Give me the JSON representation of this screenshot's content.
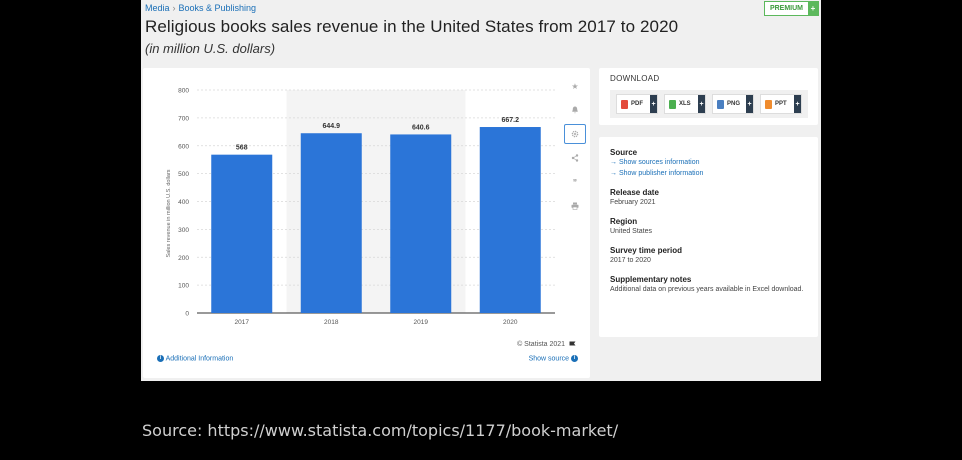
{
  "breadcrumb": {
    "parent": "Media",
    "separator": "›",
    "current": "Books & Publishing"
  },
  "premium": {
    "label": "PREMIUM",
    "plus": "+"
  },
  "title": "Religious books sales revenue in the United States from 2017 to 2020",
  "subtitle": "(in million U.S. dollars)",
  "chart_data": {
    "type": "bar",
    "categories": [
      "2017",
      "2018",
      "2019",
      "2020"
    ],
    "values": [
      568,
      644.9,
      640.6,
      667.2
    ],
    "value_labels": [
      "568",
      "644.9",
      "640.6",
      "667.2"
    ],
    "title": "",
    "xlabel": "",
    "ylabel": "Sales revenue in million U.S. dollars",
    "ylim": [
      0,
      800
    ],
    "yticks": [
      0,
      100,
      200,
      300,
      400,
      500,
      600,
      700,
      800
    ],
    "grid": true,
    "bar_color": "#2b75d8",
    "highlight_bands": [
      1,
      2
    ]
  },
  "chart_footer": {
    "copyright": "© Statista 2021",
    "additional_info": "Additional Information",
    "show_source": "Show source"
  },
  "tools": [
    "star-icon",
    "bell-icon",
    "gear-icon",
    "share-icon",
    "quote-icon",
    "print-icon"
  ],
  "download": {
    "title": "DOWNLOAD",
    "buttons": [
      {
        "label": "PDF",
        "color": "#e34b3c"
      },
      {
        "label": "XLS",
        "color": "#4caf50"
      },
      {
        "label": "PNG",
        "color": "#4a7fc1"
      },
      {
        "label": "PPT",
        "color": "#f08c2e"
      }
    ]
  },
  "meta": {
    "source_title": "Source",
    "source_link1": "→ Show sources information",
    "source_link2": "→ Show publisher information",
    "release_title": "Release date",
    "release_value": "February 2021",
    "region_title": "Region",
    "region_value": "United States",
    "period_title": "Survey time period",
    "period_value": "2017 to 2020",
    "notes_title": "Supplementary notes",
    "notes_value": "Additional data on previous years available in Excel download."
  },
  "source_line": "Source: https://www.statista.com/topics/1177/book-market/"
}
